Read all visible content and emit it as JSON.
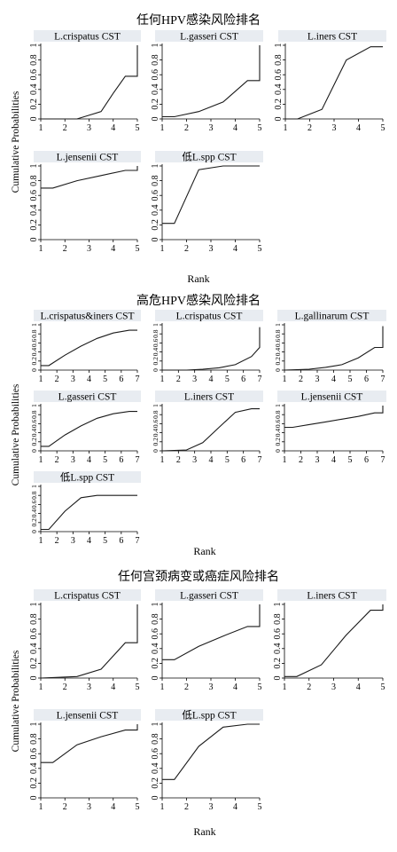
{
  "sections": [
    {
      "title": "任何HPV感染风险排名",
      "ylabel": "Cumulative Probabilities",
      "xlabel": "Rank",
      "chart_data": [
        {
          "type": "line",
          "title": "L.crispatus CST",
          "x": [
            1,
            2.5,
            3.5,
            4,
            4.5,
            5,
            5
          ],
          "values": [
            0,
            0,
            0.1,
            0.35,
            0.58,
            0.58,
            1
          ],
          "xlim": [
            1,
            5
          ],
          "ylim": [
            0,
            1
          ],
          "xticks": [
            "1",
            "2",
            "3",
            "4",
            "5"
          ],
          "yticks": [
            "0",
            "0.2",
            "0.4",
            "0.6",
            "0.8",
            "1"
          ]
        },
        {
          "type": "line",
          "title": "L.gasseri CST",
          "x": [
            1,
            1.5,
            2.5,
            3.5,
            4.5,
            5,
            5
          ],
          "values": [
            0.03,
            0.03,
            0.1,
            0.23,
            0.52,
            0.52,
            1
          ],
          "xlim": [
            1,
            5
          ],
          "ylim": [
            0,
            1
          ],
          "xticks": [
            "1",
            "2",
            "3",
            "4",
            "5"
          ],
          "yticks": [
            "0",
            "0.2",
            "0.4",
            "0.6",
            "0.8",
            "1"
          ]
        },
        {
          "type": "line",
          "title": "L.iners CST",
          "x": [
            1,
            1.5,
            2.5,
            3.5,
            4.5,
            5
          ],
          "values": [
            0,
            0,
            0.13,
            0.8,
            0.98,
            0.98
          ],
          "xlim": [
            1,
            5
          ],
          "ylim": [
            0,
            1
          ],
          "xticks": [
            "1",
            "2",
            "3",
            "4",
            "5"
          ],
          "yticks": [
            "0",
            "0.2",
            "0.4",
            "0.6",
            "0.8",
            "1"
          ]
        },
        {
          "type": "line",
          "title": "L.jensenii CST",
          "x": [
            1,
            1.5,
            2.5,
            3.5,
            4.5,
            5,
            5
          ],
          "values": [
            0.7,
            0.7,
            0.8,
            0.87,
            0.94,
            0.94,
            1
          ],
          "xlim": [
            1,
            5
          ],
          "ylim": [
            0,
            1
          ],
          "xticks": [
            "1",
            "2",
            "3",
            "4",
            "5"
          ],
          "yticks": [
            "0",
            "0.2",
            "0.4",
            "0.6",
            "0.8",
            "1"
          ]
        },
        {
          "type": "line",
          "title": "低L.spp CST",
          "x": [
            1,
            1.5,
            2.5,
            3.5,
            4.5,
            5
          ],
          "values": [
            0.22,
            0.22,
            0.95,
            1,
            1,
            1
          ],
          "xlim": [
            1,
            5
          ],
          "ylim": [
            0,
            1
          ],
          "xticks": [
            "1",
            "2",
            "3",
            "4",
            "5"
          ],
          "yticks": [
            "0",
            "0.2",
            "0.4",
            "0.6",
            "0.8",
            "1"
          ]
        }
      ]
    },
    {
      "title": "高危HPV感染风险排名",
      "ylabel": "Cumulative Probabilities",
      "xlabel": "Rank",
      "chart_data": [
        {
          "type": "line",
          "title": "L.crispatus&iners CST",
          "x": [
            1,
            1.5,
            2.5,
            3.5,
            4.5,
            5.5,
            6.5,
            7
          ],
          "values": [
            0.1,
            0.1,
            0.33,
            0.53,
            0.7,
            0.82,
            0.88,
            0.88
          ],
          "xlim": [
            1,
            7
          ],
          "ylim": [
            0,
            1
          ],
          "xticks": [
            "1",
            "2",
            "3",
            "4",
            "5",
            "6",
            "7"
          ],
          "yticks": [
            "0",
            "0.2",
            "0.4",
            "0.6",
            "0.8",
            "1"
          ]
        },
        {
          "type": "line",
          "title": "L.crispatus CST",
          "x": [
            1,
            2.5,
            3.5,
            4.5,
            5.5,
            6.5,
            7,
            7
          ],
          "values": [
            0,
            0,
            0.02,
            0.05,
            0.12,
            0.3,
            0.5,
            0.95
          ],
          "xlim": [
            1,
            7
          ],
          "ylim": [
            0,
            1
          ],
          "xticks": [
            "1",
            "2",
            "3",
            "4",
            "5",
            "6",
            "7"
          ],
          "yticks": [
            "0",
            "0.2",
            "0.4",
            "0.6",
            "0.8",
            "1"
          ]
        },
        {
          "type": "line",
          "title": "L.gallinarum CST",
          "x": [
            1,
            2.5,
            3.5,
            4.5,
            5.5,
            6.5,
            7,
            7
          ],
          "values": [
            0,
            0.02,
            0.06,
            0.12,
            0.27,
            0.5,
            0.5,
            0.97
          ],
          "xlim": [
            1,
            7
          ],
          "ylim": [
            0,
            1
          ],
          "xticks": [
            "1",
            "2",
            "3",
            "4",
            "5",
            "6",
            "7"
          ],
          "yticks": [
            "0",
            "0.2",
            "0.4",
            "0.6",
            "0.8",
            "1"
          ]
        },
        {
          "type": "line",
          "title": "L.gasseri CST",
          "x": [
            1,
            1.5,
            2.5,
            3.5,
            4.5,
            5.5,
            6.5,
            7
          ],
          "values": [
            0.1,
            0.1,
            0.35,
            0.55,
            0.72,
            0.82,
            0.87,
            0.87
          ],
          "xlim": [
            1,
            7
          ],
          "ylim": [
            0,
            1
          ],
          "xticks": [
            "1",
            "2",
            "3",
            "4",
            "5",
            "6",
            "7"
          ],
          "yticks": [
            "0",
            "0.2",
            "0.4",
            "0.6",
            "0.8",
            "1"
          ]
        },
        {
          "type": "line",
          "title": "L.iners CST",
          "x": [
            1,
            2.5,
            3.5,
            4.5,
            5.5,
            6.5,
            7
          ],
          "values": [
            0,
            0.02,
            0.18,
            0.52,
            0.85,
            0.93,
            0.93
          ],
          "xlim": [
            1,
            7
          ],
          "ylim": [
            0,
            1
          ],
          "xticks": [
            "1",
            "2",
            "3",
            "4",
            "5",
            "6",
            "7"
          ],
          "yticks": [
            "0",
            "0.2",
            "0.4",
            "0.6",
            "0.8",
            "1"
          ]
        },
        {
          "type": "line",
          "title": "L.jensenii CST",
          "x": [
            1,
            1.5,
            2.5,
            3.5,
            4.5,
            5.5,
            6.5,
            7,
            7
          ],
          "values": [
            0.52,
            0.52,
            0.58,
            0.64,
            0.7,
            0.76,
            0.84,
            0.84,
            1
          ],
          "xlim": [
            1,
            7
          ],
          "ylim": [
            0,
            1
          ],
          "xticks": [
            "1",
            "2",
            "3",
            "4",
            "5",
            "6",
            "7"
          ],
          "yticks": [
            "0",
            "0.2",
            "0.4",
            "0.6",
            "0.8",
            "1"
          ]
        },
        {
          "type": "line",
          "title": "低L.spp CST",
          "x": [
            1,
            1.5,
            2.5,
            3.5,
            4.5,
            5.5,
            6.5,
            7
          ],
          "values": [
            0.05,
            0.05,
            0.45,
            0.75,
            0.8,
            0.8,
            0.8,
            0.8
          ],
          "xlim": [
            1,
            7
          ],
          "ylim": [
            0,
            1
          ],
          "xticks": [
            "1",
            "2",
            "3",
            "4",
            "5",
            "6",
            "7"
          ],
          "yticks": [
            "0",
            "0.2",
            "0.4",
            "0.6",
            "0.8",
            "1"
          ]
        }
      ]
    },
    {
      "title": "任何宫颈病变或癌症风险排名",
      "ylabel": "Cumulative Probabilities",
      "xlabel": "Rank",
      "chart_data": [
        {
          "type": "line",
          "title": "L.crispatus CST",
          "x": [
            1,
            2.5,
            3.5,
            4.5,
            5,
            5
          ],
          "values": [
            0,
            0.02,
            0.12,
            0.48,
            0.48,
            1
          ],
          "xlim": [
            1,
            5
          ],
          "ylim": [
            0,
            1
          ],
          "xticks": [
            "1",
            "2",
            "3",
            "4",
            "5"
          ],
          "yticks": [
            "0",
            "0.2",
            "0.4",
            "0.6",
            "0.8",
            "1"
          ]
        },
        {
          "type": "line",
          "title": "L.gasseri CST",
          "x": [
            1,
            1.5,
            2.5,
            3.5,
            4.5,
            5,
            5
          ],
          "values": [
            0.25,
            0.25,
            0.43,
            0.57,
            0.7,
            0.7,
            1
          ],
          "xlim": [
            1,
            5
          ],
          "ylim": [
            0,
            1
          ],
          "xticks": [
            "1",
            "2",
            "3",
            "4",
            "5"
          ],
          "yticks": [
            "0",
            "0.2",
            "0.4",
            "0.6",
            "0.8",
            "1"
          ]
        },
        {
          "type": "line",
          "title": "L.iners CST",
          "x": [
            1,
            1.5,
            2.5,
            3.5,
            4.5,
            5,
            5
          ],
          "values": [
            0.02,
            0.02,
            0.18,
            0.58,
            0.92,
            0.92,
            1
          ],
          "xlim": [
            1,
            5
          ],
          "ylim": [
            0,
            1
          ],
          "xticks": [
            "1",
            "2",
            "3",
            "4",
            "5"
          ],
          "yticks": [
            "0",
            "0.2",
            "0.4",
            "0.6",
            "0.8",
            "1"
          ]
        },
        {
          "type": "line",
          "title": "L.jensenii CST",
          "x": [
            1,
            1.5,
            2.5,
            3.5,
            4.5,
            5,
            5
          ],
          "values": [
            0.48,
            0.48,
            0.72,
            0.83,
            0.92,
            0.92,
            1
          ],
          "xlim": [
            1,
            5
          ],
          "ylim": [
            0,
            1
          ],
          "xticks": [
            "1",
            "2",
            "3",
            "4",
            "5"
          ],
          "yticks": [
            "0",
            "0.2",
            "0.4",
            "0.6",
            "0.8",
            "1"
          ]
        },
        {
          "type": "line",
          "title": "低L.spp CST",
          "x": [
            1,
            1.5,
            2.5,
            3.5,
            4.5,
            5
          ],
          "values": [
            0.25,
            0.25,
            0.7,
            0.96,
            1,
            1
          ],
          "xlim": [
            1,
            5
          ],
          "ylim": [
            0,
            1
          ],
          "xticks": [
            "1",
            "2",
            "3",
            "4",
            "5"
          ],
          "yticks": [
            "0",
            "0.2",
            "0.4",
            "0.6",
            "0.8",
            "1"
          ]
        }
      ]
    }
  ]
}
